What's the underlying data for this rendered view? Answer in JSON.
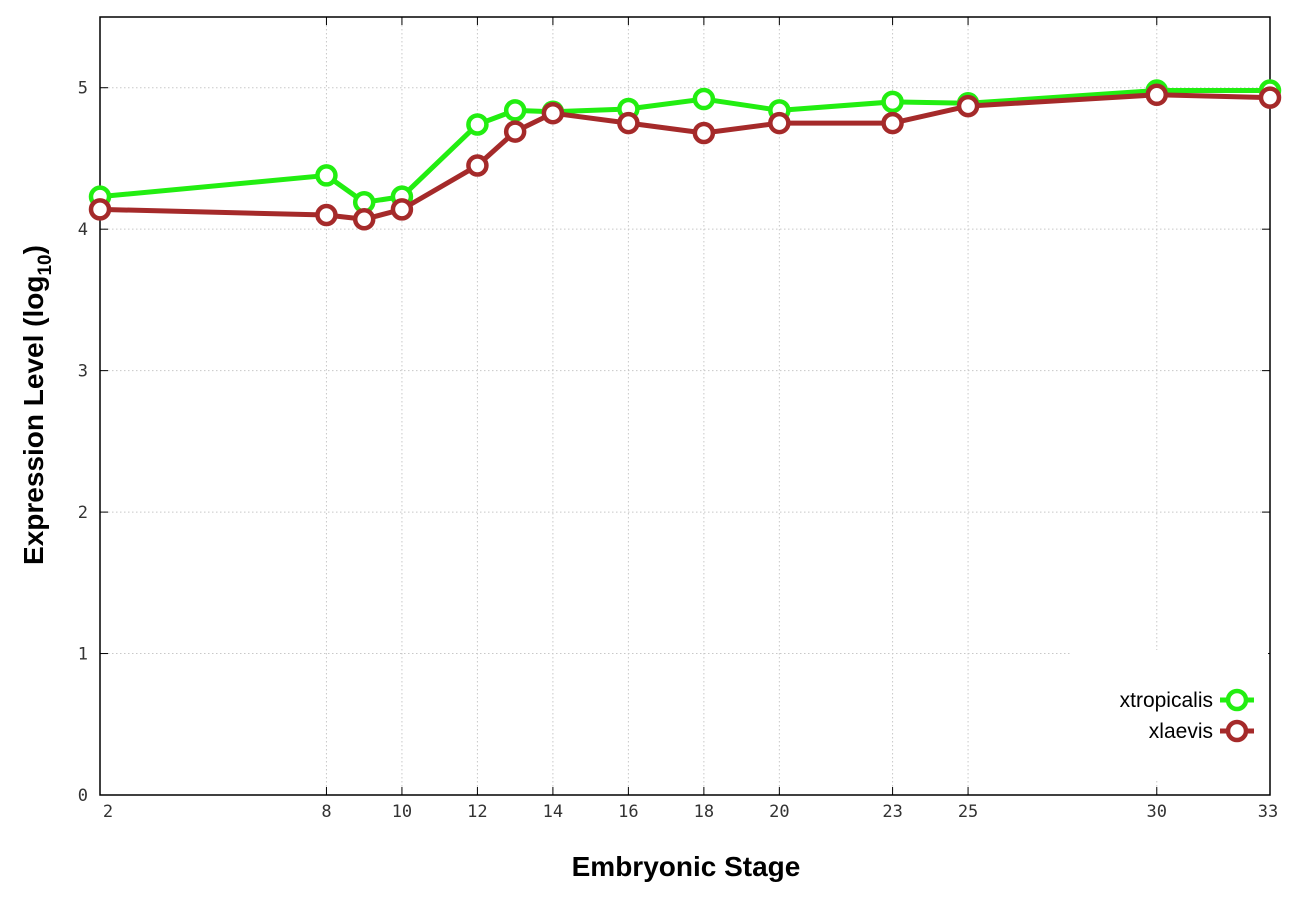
{
  "chart_data": {
    "type": "line",
    "title": "",
    "xlabel": "Embryonic Stage",
    "ylabel": {
      "main": "Expression Level (log",
      "sub": "10",
      "close": ")"
    },
    "x_ticks": [
      "2",
      "8",
      "10",
      "12",
      "14",
      "16",
      "18",
      "20",
      "23",
      "25",
      "30",
      "33"
    ],
    "y_ticks": [
      "0",
      "1",
      "2",
      "3",
      "4",
      "5"
    ],
    "xlim": [
      2,
      33
    ],
    "ylim": [
      0,
      5.5
    ],
    "grid": true,
    "legend_position": "bottom-right",
    "x": [
      2,
      8,
      9,
      10,
      12,
      13,
      14,
      16,
      18,
      20,
      23,
      25,
      30,
      33
    ],
    "series": [
      {
        "name": "xtropicalis",
        "color": "#22ee11",
        "values": [
          4.23,
          4.38,
          4.19,
          4.23,
          4.74,
          4.84,
          4.83,
          4.85,
          4.92,
          4.84,
          4.9,
          4.89,
          4.98,
          4.98
        ]
      },
      {
        "name": "xlaevis",
        "color": "#a52a2a",
        "values": [
          4.14,
          4.1,
          4.07,
          4.14,
          4.45,
          4.69,
          4.82,
          4.75,
          4.68,
          4.75,
          4.75,
          4.87,
          4.95,
          4.93
        ]
      }
    ]
  }
}
